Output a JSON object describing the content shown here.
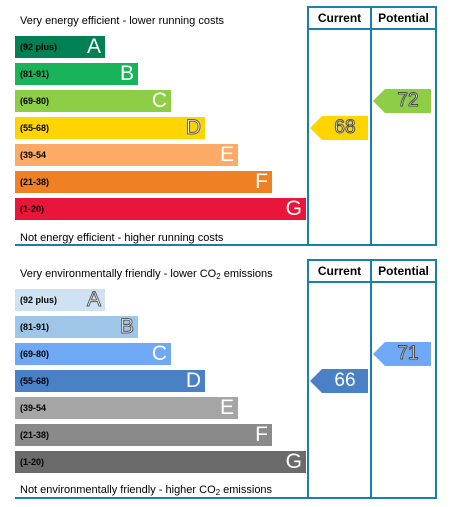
{
  "energy": {
    "top_label": "Very energy efficient - lower running costs",
    "bottom_label": "Not energy efficient - higher running costs",
    "col_current": "Current",
    "col_potential": "Potential",
    "bands": [
      {
        "range": "(92 plus)",
        "letter": "A",
        "color": "#008054"
      },
      {
        "range": "(81-91)",
        "letter": "B",
        "color": "#19b459"
      },
      {
        "range": "(69-80)",
        "letter": "C",
        "color": "#8dce46"
      },
      {
        "range": "(55-68)",
        "letter": "D",
        "color": "#ffd500"
      },
      {
        "range": "(39-54",
        "letter": "E",
        "color": "#fcaa65"
      },
      {
        "range": "(21-38)",
        "letter": "F",
        "color": "#ef8023"
      },
      {
        "range": "(1-20)",
        "letter": "G",
        "color": "#e9153b"
      }
    ],
    "current": {
      "value": "68",
      "band": "D",
      "color": "#ffd500"
    },
    "potential": {
      "value": "72",
      "band": "C",
      "color": "#8dce46"
    }
  },
  "environmental": {
    "top_label_pre": "Very environmentally friendly - lower CO",
    "top_label_sub": "2",
    "top_label_post": " emissions",
    "bottom_label_pre": "Not environmentally friendly - higher CO",
    "bottom_label_sub": "2",
    "bottom_label_post": " emissions",
    "col_current": "Current",
    "col_potential": "Potential",
    "bands": [
      {
        "range": "(92 plus)",
        "letter": "A",
        "color": "#cfe2f3"
      },
      {
        "range": "(81-91)",
        "letter": "B",
        "color": "#9fc5e8"
      },
      {
        "range": "(69-80)",
        "letter": "C",
        "color": "#6fa8f5"
      },
      {
        "range": "(55-68)",
        "letter": "D",
        "color": "#4a80c6"
      },
      {
        "range": "(39-54",
        "letter": "E",
        "color": "#a5a5a5"
      },
      {
        "range": "(21-38)",
        "letter": "F",
        "color": "#8a8a8a"
      },
      {
        "range": "(1-20)",
        "letter": "G",
        "color": "#6b6b6b"
      }
    ],
    "current": {
      "value": "66",
      "band": "D",
      "color": "#4a80c6"
    },
    "potential": {
      "value": "71",
      "band": "C",
      "color": "#6fa8f5"
    }
  },
  "chart_data": [
    {
      "type": "bar",
      "categories": [
        "(92 plus) A",
        "(81-91) B",
        "(69-80) C",
        "(55-68) D",
        "(39-54 E",
        "(21-38) F",
        "(1-20) G"
      ],
      "current": 68,
      "potential": 72
    },
    {
      "type": "bar",
      "categories": [
        "(92 plus) A",
        "(81-91) B",
        "(69-80) C",
        "(55-68) D",
        "(39-54 E",
        "(21-38) F",
        "(1-20) G"
      ],
      "current": 66,
      "potential": 71
    }
  ]
}
